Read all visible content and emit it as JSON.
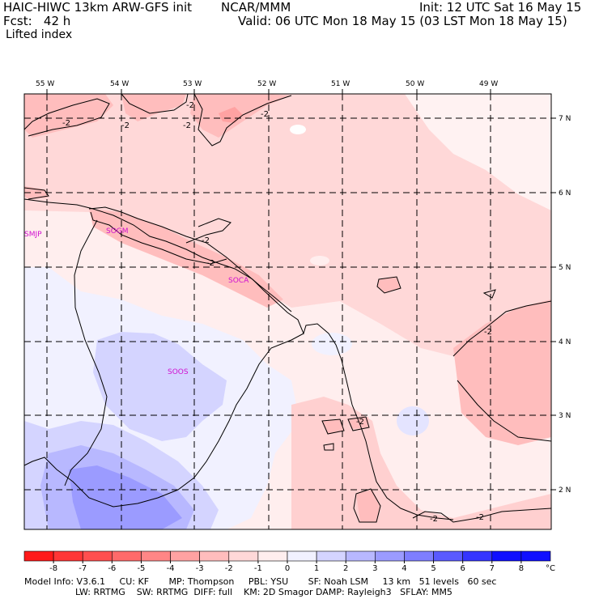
{
  "header": {
    "model": "HAIC-HIWC 13km ARW-GFS init",
    "org": "NCAR/MMM",
    "init": "Init: 12 UTC Sat 16 May 15",
    "fcst": "Fcst:   42 h",
    "valid": "Valid: 06 UTC Mon 18 May 15 (03 LST Mon 18 May 15)",
    "field": "Lifted index"
  },
  "axes": {
    "lon_labels": [
      "55 W",
      "54 W",
      "53 W",
      "52 W",
      "51 W",
      "50 W",
      "49 W"
    ],
    "lat_labels": [
      "7 N",
      "6 N",
      "5 N",
      "4 N",
      "3 N",
      "2 N"
    ]
  },
  "stations": [
    "SMJP",
    "SOGM",
    "SOCA",
    "SOOS"
  ],
  "contour_labels": [
    "-2",
    "-2",
    "-2",
    "-2",
    "-2",
    "-2",
    "-2",
    "-2",
    "-2",
    "-2",
    "-2"
  ],
  "colorbar": {
    "ticks": [
      "-8",
      "-7",
      "-6",
      "-5",
      "-4",
      "-3",
      "-2",
      "-1",
      "0",
      "1",
      "2",
      "3",
      "4",
      "5",
      "6",
      "7",
      "8"
    ],
    "unit": "°C",
    "colors": [
      "#ff1a1a",
      "#ff3636",
      "#ff4f4f",
      "#ff6a6a",
      "#ff8686",
      "#ffa2a2",
      "#ffbdbd",
      "#ffd8d8",
      "#ffeeee",
      "#f1f1ff",
      "#d4d4ff",
      "#b8b8ff",
      "#9b9bff",
      "#7e7eff",
      "#5a5aff",
      "#3535ff",
      "#0f0fff"
    ]
  },
  "footer": {
    "line1": "Model Info: V3.6.1     CU: KF       MP: Thompson     PBL: YSU       SF: Noah LSM     13 km   51 levels   60 sec",
    "line2": "                  LW: RRTMG    SW: RRTMG  DIFF: full    KM: 2D Smagor DAMP: Rayleigh3   SFLAY: MM5"
  }
}
